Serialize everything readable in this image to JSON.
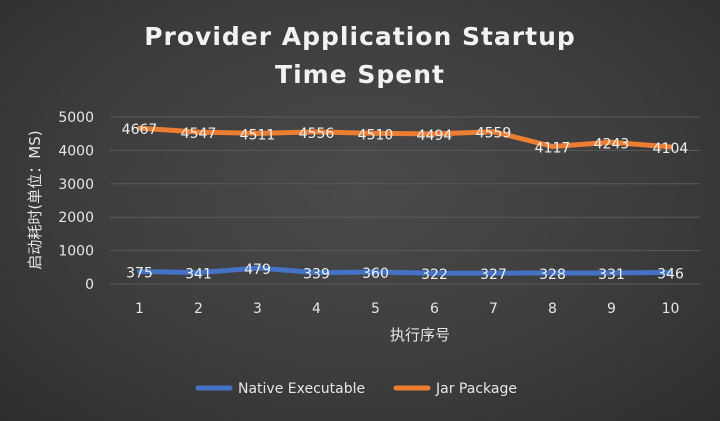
{
  "chart_data": {
    "type": "line",
    "title_lines": [
      "Provider Application Startup",
      "Time Spent"
    ],
    "xlabel": "执行序号",
    "ylabel": "启动耗时(单位：MS)",
    "categories": [
      "1",
      "2",
      "3",
      "4",
      "5",
      "6",
      "7",
      "8",
      "9",
      "10"
    ],
    "ylim": [
      0,
      5000
    ],
    "yticks": [
      0,
      1000,
      2000,
      3000,
      4000,
      5000
    ],
    "grid": true,
    "legend_position": "bottom",
    "series": [
      {
        "name": "Native Executable",
        "color": "#4472c4",
        "values": [
          375,
          341,
          479,
          339,
          360,
          322,
          327,
          328,
          331,
          346
        ]
      },
      {
        "name": "Jar Package",
        "color": "#ed7d31",
        "values": [
          4667,
          4547,
          4511,
          4556,
          4510,
          4494,
          4559,
          4117,
          4243,
          4104
        ]
      }
    ]
  }
}
